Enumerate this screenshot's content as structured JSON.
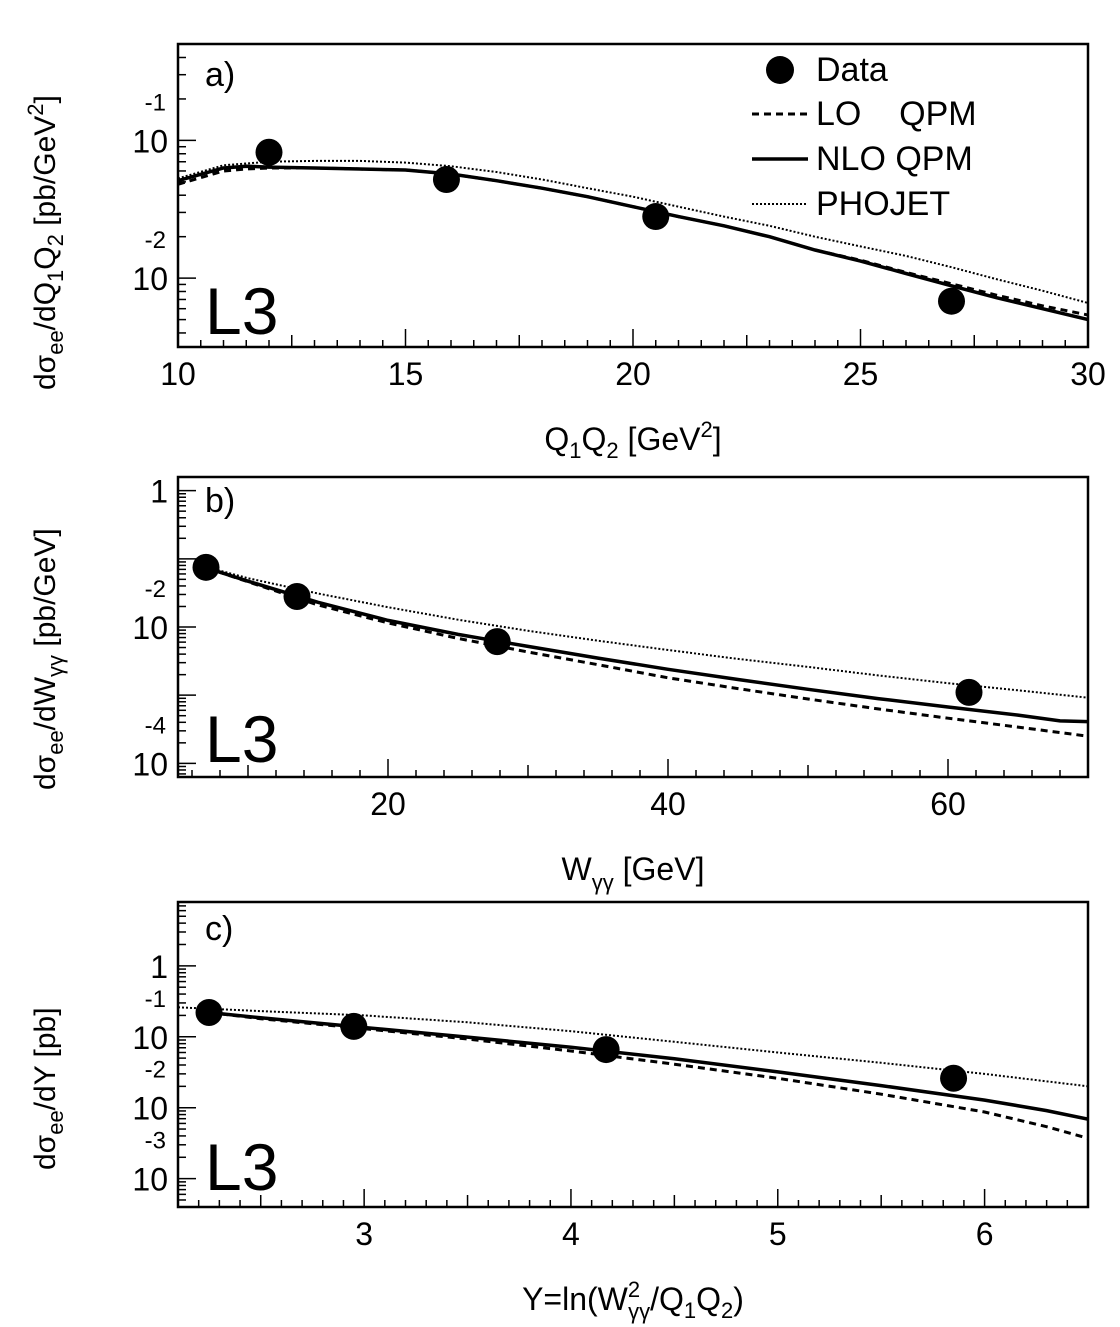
{
  "chart_data": [
    {
      "type": "scatter",
      "panel_label": "a)",
      "experiment_label": "L3",
      "ylabel": {
        "d": "d",
        "sigma": "σ",
        "ee": "ee",
        "rest1": "/dQ",
        "s1": "1",
        "q": "Q",
        "s2": "2",
        "rest2": " [pb/GeV",
        "sup": "2",
        "close": "]"
      },
      "xlabel": {
        "q1": "Q",
        "s1": "1",
        "q2": "Q",
        "s2": "2",
        "rest": " [GeV",
        "sup": "2",
        "close": "]"
      },
      "xlim": [
        10,
        30
      ],
      "ylim_log10": [
        -2.5,
        -0.3
      ],
      "y_log_scale": true,
      "x_ticks": [
        10,
        15,
        20,
        25,
        30
      ],
      "x_tick_labels": [
        "10",
        "15",
        "20",
        "25",
        "30"
      ],
      "y_ticks": [
        {
          "base": "10",
          "exp": "-1",
          "log": -1
        },
        {
          "base": "10",
          "exp": "-2",
          "log": -2
        }
      ],
      "legend": {
        "placement": "top-right",
        "entries": [
          {
            "label": "Data",
            "kind": "marker"
          },
          {
            "label": "LO    QPM",
            "kind": "dashed"
          },
          {
            "label": "NLO QPM",
            "kind": "solid"
          },
          {
            "label": "PHOJET",
            "kind": "dotted"
          }
        ]
      },
      "data": {
        "x": [
          12.0,
          15.9,
          20.5,
          27.0
        ],
        "y": [
          0.082,
          0.052,
          0.028,
          0.0068
        ],
        "yerr": [
          0.005,
          0.004,
          0.003,
          0.0013
        ]
      },
      "series": [
        {
          "name": "LO    QPM",
          "style": "dashed",
          "x": [
            10,
            11,
            11.5,
            12,
            13,
            14,
            15,
            16,
            17,
            18,
            19,
            20,
            21,
            22,
            23,
            24,
            25,
            26,
            27,
            28,
            29,
            30
          ],
          "y": [
            0.048,
            0.06,
            0.062,
            0.063,
            0.063,
            0.062,
            0.061,
            0.057,
            0.051,
            0.045,
            0.039,
            0.033,
            0.028,
            0.024,
            0.02,
            0.016,
            0.0135,
            0.011,
            0.0091,
            0.0075,
            0.0063,
            0.0054
          ]
        },
        {
          "name": "NLO QPM",
          "style": "solid",
          "x": [
            10,
            11,
            11.5,
            12,
            13,
            14,
            15,
            16,
            17,
            18,
            19,
            20,
            21,
            22,
            23,
            24,
            25,
            26,
            27,
            28,
            29,
            30
          ],
          "y": [
            0.051,
            0.063,
            0.065,
            0.064,
            0.063,
            0.062,
            0.061,
            0.057,
            0.051,
            0.045,
            0.039,
            0.033,
            0.028,
            0.024,
            0.02,
            0.016,
            0.0133,
            0.0108,
            0.0088,
            0.0072,
            0.006,
            0.005
          ]
        },
        {
          "name": "PHOJET",
          "style": "dotted",
          "x": [
            10,
            11,
            12,
            13,
            14,
            15,
            16,
            17,
            18,
            19,
            20,
            21,
            22,
            23,
            24,
            25,
            26,
            27,
            28,
            29,
            30
          ],
          "y": [
            0.053,
            0.066,
            0.07,
            0.071,
            0.071,
            0.069,
            0.065,
            0.059,
            0.052,
            0.045,
            0.039,
            0.033,
            0.028,
            0.024,
            0.02,
            0.017,
            0.0145,
            0.012,
            0.0098,
            0.0081,
            0.0066
          ]
        }
      ]
    },
    {
      "type": "scatter",
      "panel_label": "b)",
      "experiment_label": "L3",
      "ylabel": {
        "d": "d",
        "sigma": "σ",
        "ee": "ee",
        "rest1": "/dW",
        "sub": "γγ",
        "rest2": " [pb/GeV]"
      },
      "xlabel": {
        "w": "W",
        "sub": "γγ",
        "rest": " [GeV]"
      },
      "xlim": [
        5,
        70
      ],
      "ylim_log10": [
        -4.2,
        0.2
      ],
      "y_log_scale": true,
      "x_ticks": [
        20,
        40,
        60
      ],
      "x_tick_labels": [
        "20",
        "40",
        "60"
      ],
      "y_ticks": [
        {
          "base": "1",
          "exp": "",
          "log": 0
        },
        {
          "base": "10",
          "exp": "-2",
          "log": -2
        },
        {
          "base": "10",
          "exp": "-4",
          "log": -4
        }
      ],
      "data": {
        "x": [
          7.0,
          13.5,
          27.8,
          61.5
        ],
        "y": [
          0.075,
          0.028,
          0.0061,
          0.0011
        ],
        "yerr": [
          0.006,
          0.003,
          0.0008,
          0.00025
        ]
      },
      "series": [
        {
          "name": "LO    QPM",
          "style": "dashed",
          "x": [
            7,
            10,
            15,
            20,
            25,
            30,
            35,
            40,
            45,
            50,
            55,
            60,
            65,
            70
          ],
          "y": [
            0.074,
            0.046,
            0.021,
            0.0115,
            0.0068,
            0.0043,
            0.0028,
            0.0018,
            0.00125,
            0.00088,
            0.00063,
            0.00046,
            0.00034,
            0.00025
          ]
        },
        {
          "name": "NLO QPM",
          "style": "solid",
          "x": [
            7,
            10,
            15,
            20,
            25,
            30,
            35,
            40,
            45,
            50,
            55,
            60,
            65,
            68,
            70
          ],
          "y": [
            0.074,
            0.047,
            0.023,
            0.0125,
            0.0078,
            0.0052,
            0.0035,
            0.0024,
            0.0017,
            0.00122,
            0.00089,
            0.00067,
            0.00051,
            0.00042,
            0.00041
          ]
        },
        {
          "name": "PHOJET",
          "style": "dotted",
          "x": [
            7,
            10,
            15,
            20,
            25,
            30,
            35,
            40,
            45,
            50,
            55,
            60,
            65,
            70
          ],
          "y": [
            0.076,
            0.052,
            0.031,
            0.0195,
            0.0128,
            0.0088,
            0.0063,
            0.0046,
            0.0034,
            0.0026,
            0.00195,
            0.0015,
            0.00118,
            0.00092
          ]
        }
      ]
    },
    {
      "type": "scatter",
      "panel_label": "c)",
      "experiment_label": "L3",
      "ylabel": {
        "d": "d",
        "sigma": "σ",
        "ee": "ee",
        "rest": "/dY [pb]"
      },
      "xlabel": {
        "pre": "Y=ln(W",
        "sup": "2",
        "sub": "γγ",
        "mid": "/Q",
        "s1": "1",
        "q": "Q",
        "s2": "2",
        "close": ")"
      },
      "xlim": [
        2.1,
        6.5
      ],
      "ylim_log10": [
        -3.4,
        0.9
      ],
      "y_log_scale": true,
      "x_ticks": [
        3,
        4,
        5,
        6
      ],
      "x_tick_labels": [
        "3",
        "4",
        "5",
        "6"
      ],
      "y_ticks": [
        {
          "base": "1",
          "exp": "",
          "log": 0
        },
        {
          "base": "10",
          "exp": "-1",
          "log": -1
        },
        {
          "base": "10",
          "exp": "-2",
          "log": -2
        },
        {
          "base": "10",
          "exp": "-3",
          "log": -3
        }
      ],
      "data": {
        "x": [
          2.25,
          2.95,
          4.17,
          5.85
        ],
        "y": [
          0.22,
          0.14,
          0.066,
          0.026
        ],
        "yerr": [
          0.02,
          0.015,
          0.008,
          0.004
        ]
      },
      "series": [
        {
          "name": "LO    QPM",
          "style": "dashed",
          "x": [
            2.25,
            2.5,
            3.0,
            3.5,
            4.0,
            4.5,
            5.0,
            5.5,
            6.0,
            6.3,
            6.5
          ],
          "y": [
            0.22,
            0.18,
            0.13,
            0.093,
            0.063,
            0.041,
            0.026,
            0.0155,
            0.0087,
            0.0054,
            0.0037
          ]
        },
        {
          "name": "NLO QPM",
          "style": "solid",
          "x": [
            2.25,
            2.5,
            3.0,
            3.5,
            4.0,
            4.5,
            5.0,
            5.5,
            6.0,
            6.3,
            6.5
          ],
          "y": [
            0.22,
            0.185,
            0.135,
            0.099,
            0.071,
            0.049,
            0.032,
            0.0205,
            0.0128,
            0.0091,
            0.0069
          ]
        },
        {
          "name": "PHOJET",
          "style": "dotted",
          "x": [
            2.1,
            2.5,
            3.0,
            3.5,
            4.0,
            4.5,
            5.0,
            5.5,
            6.0,
            6.5
          ],
          "y": [
            0.26,
            0.23,
            0.2,
            0.16,
            0.12,
            0.085,
            0.06,
            0.043,
            0.03,
            0.02
          ]
        }
      ]
    }
  ]
}
